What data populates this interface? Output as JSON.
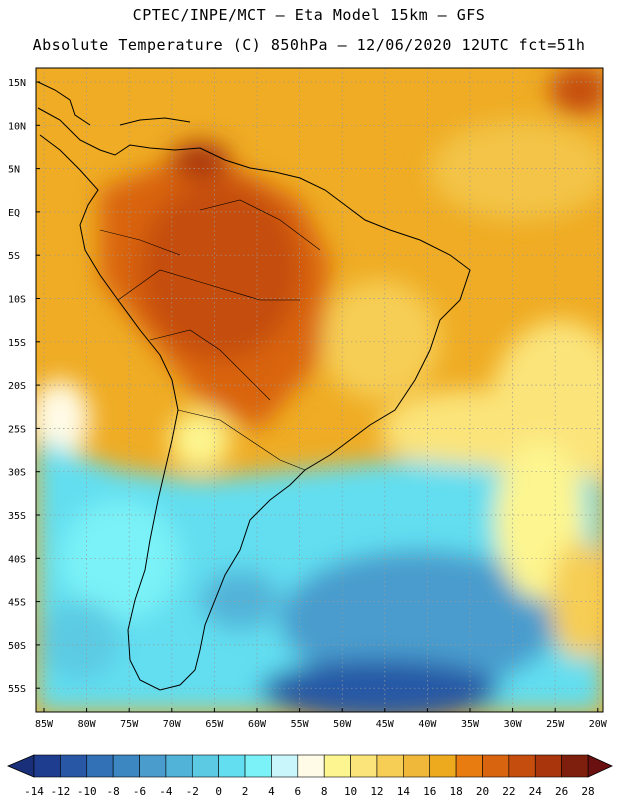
{
  "header": {
    "line1": "CPTEC/INPE/MCT –  Eta Model 15km – GFS",
    "line2": "Absolute Temperature (C) 850hPa – 12/06/2020 12UTC fct=51h"
  },
  "map": {
    "lat_labels": [
      "15N",
      "10N",
      "5N",
      "EQ",
      "5S",
      "10S",
      "15S",
      "20S",
      "25S",
      "30S",
      "35S",
      "40S",
      "45S",
      "50S",
      "55S"
    ],
    "lon_labels": [
      "85W",
      "80W",
      "75W",
      "70W",
      "65W",
      "60W",
      "55W",
      "50W",
      "45W",
      "40W",
      "35W",
      "30W",
      "25W",
      "20W"
    ]
  },
  "colorbar": {
    "labels": [
      "-14",
      "-12",
      "-10",
      "-8",
      "-6",
      "-4",
      "-2",
      "0",
      "2",
      "4",
      "6",
      "8",
      "10",
      "12",
      "14",
      "16",
      "18",
      "20",
      "22",
      "24",
      "26",
      "28"
    ],
    "colors": [
      "#1e3d8f",
      "#2858a5",
      "#3271b5",
      "#3c86c1",
      "#4a9ccd",
      "#52b3d8",
      "#5ccae3",
      "#62def0",
      "#7af2f7",
      "#c8f6fa",
      "#fffbe6",
      "#fdf58f",
      "#fbe47a",
      "#f6ce55",
      "#f0b83a",
      "#eeaa1f",
      "#e87c10",
      "#d96410",
      "#c54e0e",
      "#a8350c",
      "#7d1f0c"
    ],
    "left_arrow_color": "#1a2f7a",
    "right_arrow_color": "#6a1010"
  }
}
